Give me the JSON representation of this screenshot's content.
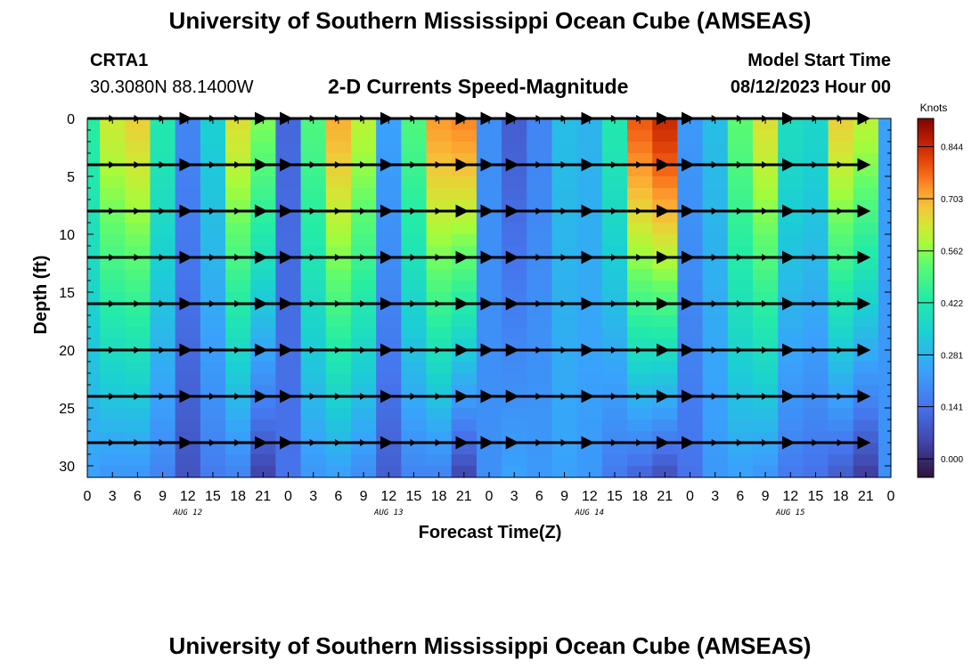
{
  "header": {
    "title": "University of Southern Mississippi Ocean Cube (AMSEAS)",
    "station": "CRTA1",
    "coords": "30.3080N  88.1400W",
    "center_title": "2-D Currents Speed-Magnitude",
    "model_label": "Model Start Time",
    "model_time": "08/12/2023 Hour 00",
    "bottom_title": "University of Southern Mississippi Ocean Cube (AMSEAS)"
  },
  "chart_data": {
    "type": "heatmap",
    "title": "2-D Currents Speed-Magnitude",
    "xlabel": "Forecast Time(Z)",
    "ylabel": "Depth (ft)",
    "x_tick_labels": [
      "0",
      "3",
      "6",
      "9",
      "12",
      "15",
      "18",
      "21",
      "0",
      "3",
      "6",
      "9",
      "12",
      "15",
      "18",
      "21",
      "0",
      "3",
      "6",
      "9",
      "12",
      "15",
      "18",
      "21",
      "0",
      "3",
      "6",
      "9",
      "12",
      "15",
      "18",
      "21",
      "0"
    ],
    "day_labels": [
      "AUG 12",
      "AUG 13",
      "AUG 14",
      "AUG 15"
    ],
    "ylim": [
      0,
      31
    ],
    "y_ticks": [
      0,
      5,
      10,
      15,
      20,
      25,
      30
    ],
    "colorbar": {
      "title": "Knots",
      "tick_labels": [
        "0.844",
        "0.703",
        "0.562",
        "0.422",
        "0.281",
        "0.141",
        "0.000"
      ],
      "ticks": [
        0.844,
        0.703,
        0.562,
        0.422,
        0.281,
        0.141,
        0.0
      ],
      "range": [
        -0.05,
        0.92
      ]
    },
    "speed_profiles": [
      {
        "hour": 0,
        "top": 0.44,
        "bottom": 0.24
      },
      {
        "hour": 3,
        "top": 0.62,
        "bottom": 0.22
      },
      {
        "hour": 6,
        "top": 0.66,
        "bottom": 0.22
      },
      {
        "hour": 9,
        "top": 0.42,
        "bottom": 0.18
      },
      {
        "hour": 12,
        "top": 0.18,
        "bottom": 0.08
      },
      {
        "hour": 15,
        "top": 0.34,
        "bottom": 0.16
      },
      {
        "hour": 18,
        "top": 0.64,
        "bottom": 0.18
      },
      {
        "hour": 21,
        "top": 0.55,
        "bottom": 0.05
      },
      {
        "hour": 24,
        "top": 0.12,
        "bottom": 0.14
      },
      {
        "hour": 27,
        "top": 0.5,
        "bottom": 0.22
      },
      {
        "hour": 30,
        "top": 0.7,
        "bottom": 0.24
      },
      {
        "hour": 33,
        "top": 0.6,
        "bottom": 0.2
      },
      {
        "hour": 36,
        "top": 0.24,
        "bottom": 0.1
      },
      {
        "hour": 39,
        "top": 0.5,
        "bottom": 0.18
      },
      {
        "hour": 42,
        "top": 0.72,
        "bottom": 0.18
      },
      {
        "hour": 45,
        "top": 0.74,
        "bottom": 0.06
      },
      {
        "hour": 48,
        "top": 0.2,
        "bottom": 0.2
      },
      {
        "hour": 51,
        "top": 0.1,
        "bottom": 0.24
      },
      {
        "hour": 54,
        "top": 0.18,
        "bottom": 0.22
      },
      {
        "hour": 57,
        "top": 0.3,
        "bottom": 0.24
      },
      {
        "hour": 60,
        "top": 0.28,
        "bottom": 0.22
      },
      {
        "hour": 63,
        "top": 0.42,
        "bottom": 0.16
      },
      {
        "hour": 66,
        "top": 0.78,
        "bottom": 0.12
      },
      {
        "hour": 69,
        "top": 0.84,
        "bottom": 0.08
      },
      {
        "hour": 72,
        "top": 0.22,
        "bottom": 0.14
      },
      {
        "hour": 75,
        "top": 0.3,
        "bottom": 0.22
      },
      {
        "hour": 78,
        "top": 0.52,
        "bottom": 0.24
      },
      {
        "hour": 81,
        "top": 0.64,
        "bottom": 0.22
      },
      {
        "hour": 84,
        "top": 0.38,
        "bottom": 0.16
      },
      {
        "hour": 87,
        "top": 0.36,
        "bottom": 0.14
      },
      {
        "hour": 90,
        "top": 0.66,
        "bottom": 0.1
      },
      {
        "hour": 93,
        "top": 0.6,
        "bottom": 0.04
      },
      {
        "hour": 96,
        "top": 0.24,
        "bottom": 0.2
      }
    ],
    "vector_depths_ft": [
      0,
      4,
      8,
      12,
      16,
      20,
      24,
      28
    ],
    "vector_hours": [
      0,
      12,
      21,
      24,
      36,
      45,
      48,
      51,
      60,
      69,
      72,
      84,
      93
    ]
  }
}
